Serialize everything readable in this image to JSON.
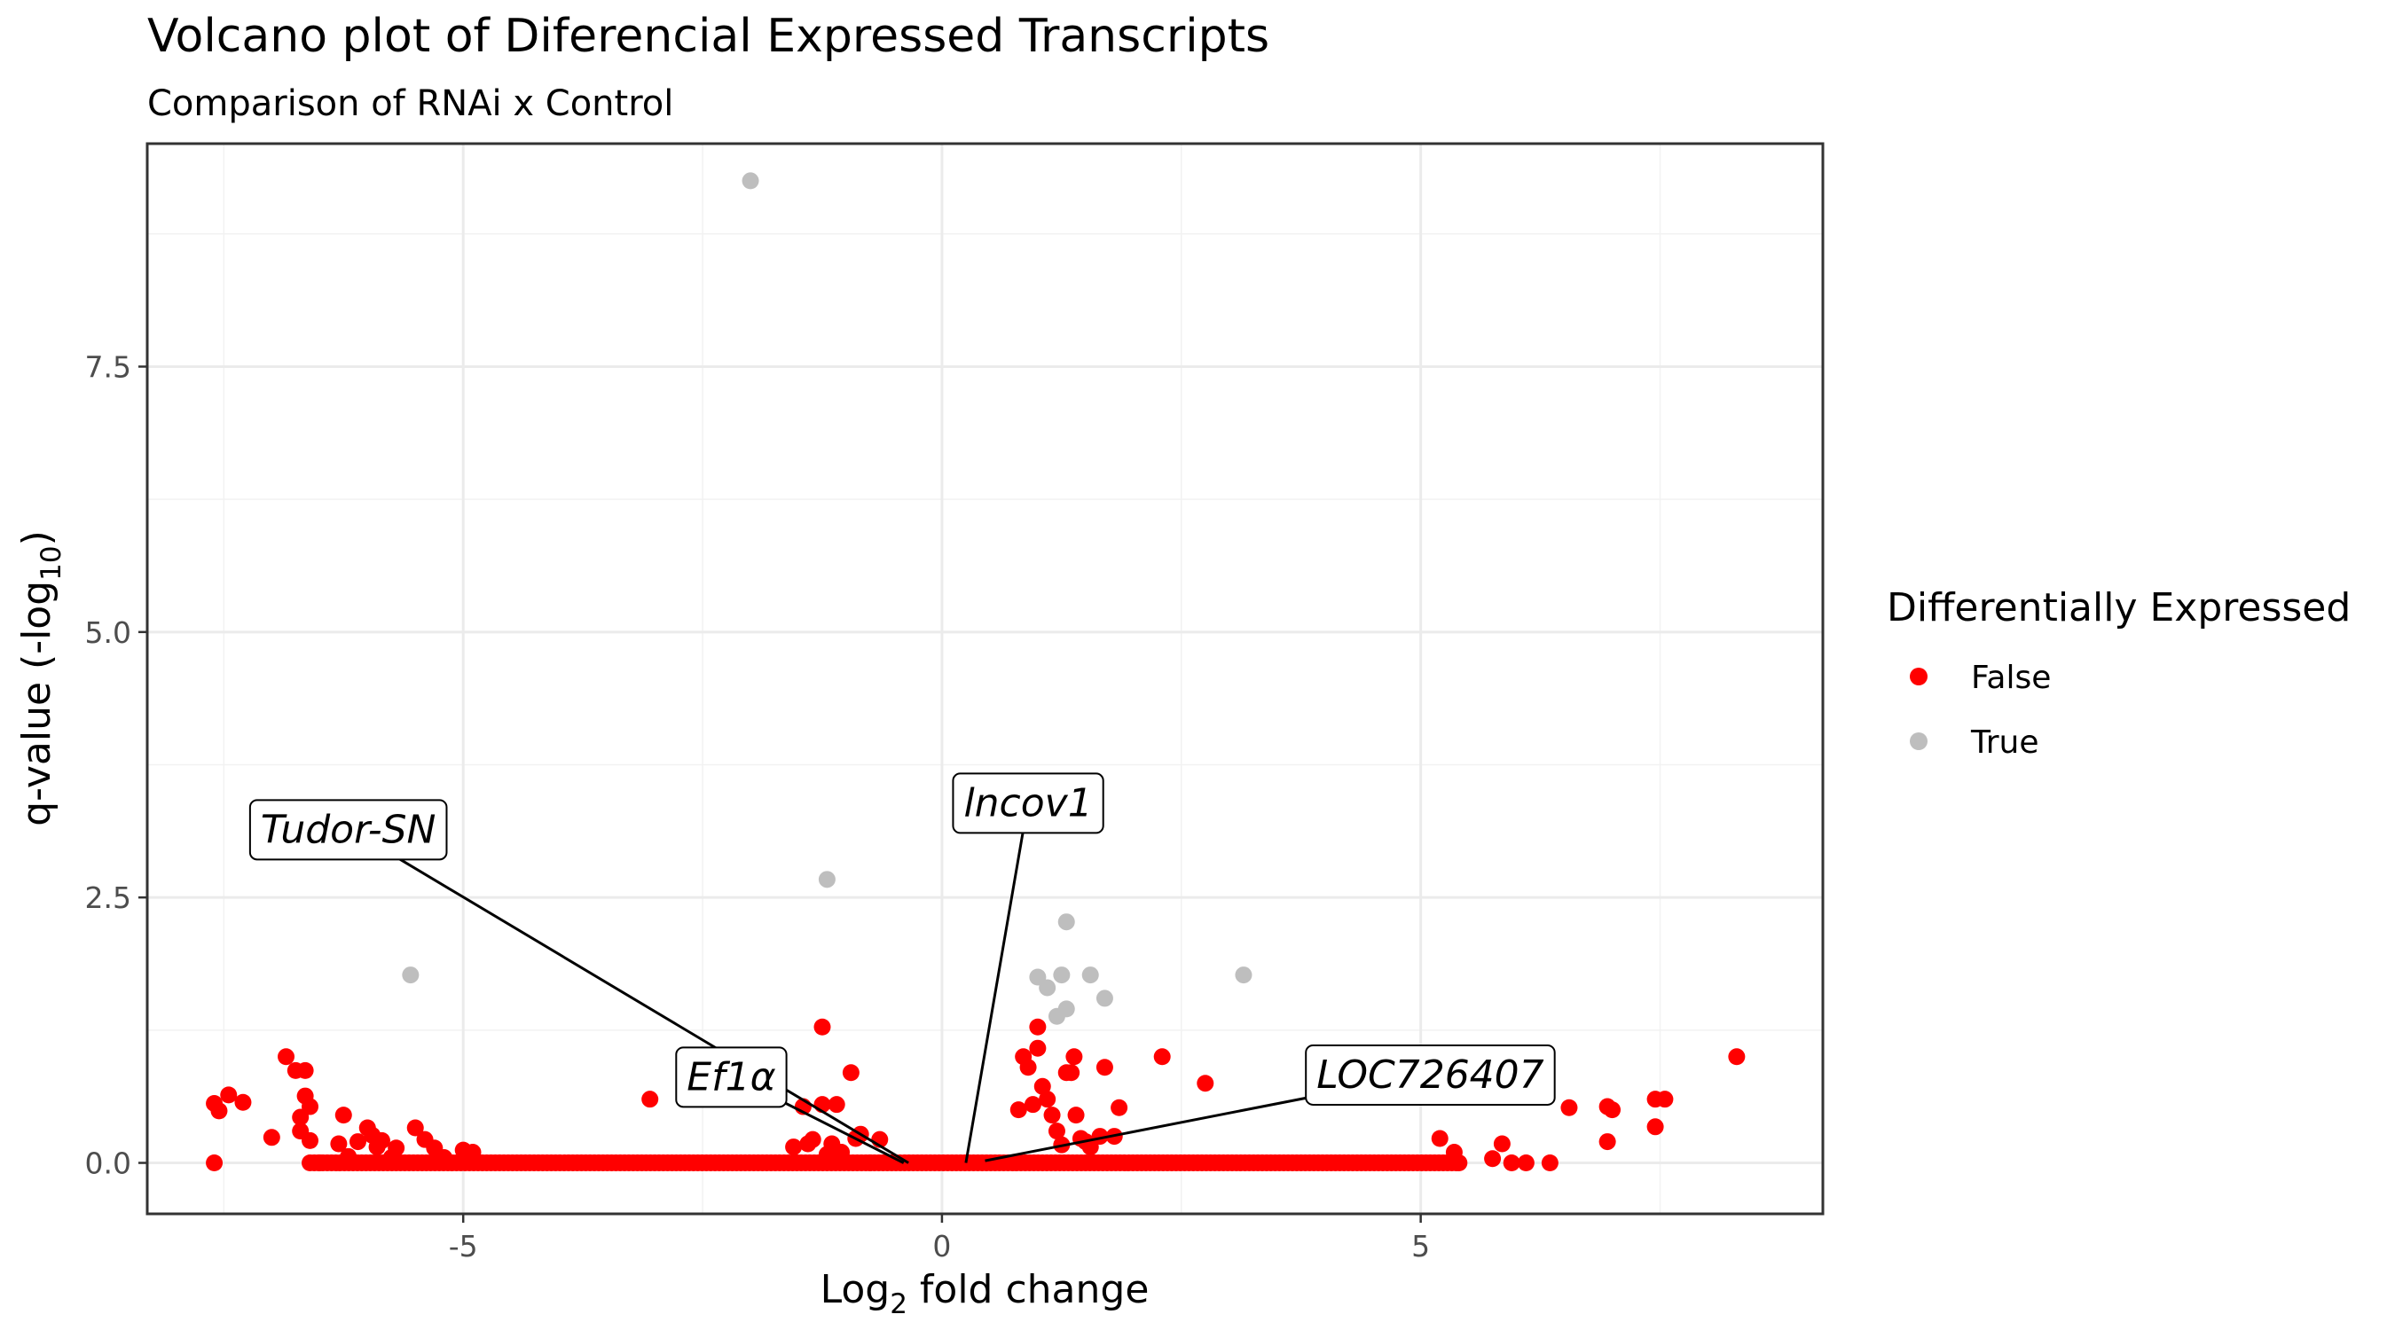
{
  "chart_data": {
    "type": "scatter",
    "title": "Volcano plot of Diferencial Expressed Transcripts",
    "subtitle": "Comparison of RNAi x Control",
    "xlabel": {
      "main": "Log",
      "sub": "2",
      "rest": " fold change"
    },
    "ylabel": {
      "main": "q-value (-log",
      "sub": "10",
      "rest": ")"
    },
    "xlim": [
      -8.3,
      9.2
    ],
    "ylim": [
      -0.48,
      9.6
    ],
    "x_ticks": [
      {
        "value": -5,
        "label": "-5"
      },
      {
        "value": 0,
        "label": "0"
      },
      {
        "value": 5,
        "label": "5"
      }
    ],
    "y_ticks": [
      {
        "value": 0,
        "label": "0.0"
      },
      {
        "value": 2.5,
        "label": "2.5"
      },
      {
        "value": 5,
        "label": "5.0"
      },
      {
        "value": 7.5,
        "label": "7.5"
      }
    ],
    "x_minor_gridlines": [
      -7.5,
      -2.5,
      2.5,
      7.5
    ],
    "y_minor_gridlines": [
      1.25,
      3.75,
      6.25,
      8.75
    ],
    "grid": true,
    "legend": {
      "title": "Differentially Expressed",
      "position": "right",
      "entries": [
        {
          "label": "False",
          "color": "#ff0000"
        },
        {
          "label": "True",
          "color": "#bebebe"
        }
      ]
    },
    "series": [
      {
        "name": "False",
        "color": "#ff0000",
        "points": [
          [
            -7.6,
            0.56
          ],
          [
            -7.55,
            0.49
          ],
          [
            -7.45,
            0.64
          ],
          [
            -7.6,
            0.0
          ],
          [
            -7.3,
            0.57
          ],
          [
            -7.0,
            0.24
          ],
          [
            -6.85,
            1.0
          ],
          [
            -6.75,
            0.87
          ],
          [
            -6.65,
            0.87
          ],
          [
            -6.7,
            0.43
          ],
          [
            -6.65,
            0.63
          ],
          [
            -6.6,
            0.53
          ],
          [
            -6.7,
            0.3
          ],
          [
            -6.6,
            0.21
          ],
          [
            -6.5,
            0.0
          ],
          [
            -6.3,
            0.18
          ],
          [
            -6.25,
            0.45
          ],
          [
            -6.2,
            0.06
          ],
          [
            -6.1,
            0.2
          ],
          [
            -6.0,
            0.33
          ],
          [
            -5.95,
            0.26
          ],
          [
            -5.9,
            0.15
          ],
          [
            -5.85,
            0.21
          ],
          [
            -5.75,
            0.05
          ],
          [
            -5.7,
            0.14
          ],
          [
            -5.5,
            0.33
          ],
          [
            -5.4,
            0.22
          ],
          [
            -5.3,
            0.14
          ],
          [
            -5.2,
            0.05
          ],
          [
            -5.0,
            0.12
          ],
          [
            -4.9,
            0.1
          ],
          [
            -3.05,
            0.6
          ],
          [
            -1.55,
            0.15
          ],
          [
            -1.45,
            0.53
          ],
          [
            -1.4,
            0.18
          ],
          [
            -1.35,
            0.22
          ],
          [
            -1.25,
            0.55
          ],
          [
            -1.25,
            1.28
          ],
          [
            -1.2,
            0.08
          ],
          [
            -1.15,
            0.18
          ],
          [
            -1.1,
            0.55
          ],
          [
            -1.05,
            0.1
          ],
          [
            -0.95,
            0.85
          ],
          [
            -0.9,
            0.23
          ],
          [
            -0.85,
            0.27
          ],
          [
            -0.75,
            0.0
          ],
          [
            -0.65,
            0.22
          ],
          [
            0.8,
            0.5
          ],
          [
            0.85,
            1.0
          ],
          [
            0.9,
            0.9
          ],
          [
            0.95,
            0.55
          ],
          [
            1.0,
            1.08
          ],
          [
            1.0,
            1.28
          ],
          [
            1.05,
            0.72
          ],
          [
            1.1,
            0.6
          ],
          [
            1.15,
            0.45
          ],
          [
            1.2,
            0.3
          ],
          [
            1.25,
            0.17
          ],
          [
            1.3,
            0.85
          ],
          [
            1.35,
            0.85
          ],
          [
            1.38,
            1.0
          ],
          [
            1.4,
            0.45
          ],
          [
            1.45,
            0.23
          ],
          [
            1.5,
            0.2
          ],
          [
            1.55,
            0.15
          ],
          [
            1.65,
            0.25
          ],
          [
            1.7,
            0.9
          ],
          [
            1.8,
            0.25
          ],
          [
            1.85,
            0.52
          ],
          [
            2.3,
            1.0
          ],
          [
            2.75,
            0.75
          ],
          [
            5.2,
            0.23
          ],
          [
            5.35,
            0.1
          ],
          [
            5.4,
            0.0
          ],
          [
            5.75,
            0.04
          ],
          [
            5.85,
            0.18
          ],
          [
            5.95,
            0.0
          ],
          [
            6.1,
            0.0
          ],
          [
            6.35,
            0.0
          ],
          [
            6.55,
            0.52
          ],
          [
            6.95,
            0.2
          ],
          [
            6.95,
            0.53
          ],
          [
            7.0,
            0.5
          ],
          [
            7.45,
            0.6
          ],
          [
            7.45,
            0.34
          ],
          [
            7.55,
            0.6
          ],
          [
            8.3,
            1.0
          ]
        ],
        "baseline": {
          "y": 0.0,
          "x_from": -6.6,
          "x_to": 5.4,
          "step": 0.045
        }
      },
      {
        "name": "True",
        "color": "#bebebe",
        "points": [
          [
            -2.0,
            9.25
          ],
          [
            -5.55,
            1.77
          ],
          [
            -1.2,
            2.67
          ],
          [
            1.3,
            2.27
          ],
          [
            1.0,
            1.75
          ],
          [
            1.25,
            1.77
          ],
          [
            1.55,
            1.77
          ],
          [
            1.1,
            1.65
          ],
          [
            1.3,
            1.45
          ],
          [
            1.2,
            1.38
          ],
          [
            1.7,
            1.55
          ],
          [
            3.15,
            1.77
          ]
        ]
      }
    ],
    "annotations": [
      {
        "label": "Tudor-SN",
        "label_x": -6.2,
        "label_y": 3.15,
        "point_x": -0.35,
        "point_y": 0.0
      },
      {
        "label": "lncov1",
        "label_x": 0.9,
        "label_y": 3.4,
        "point_x": 0.25,
        "point_y": 0.0
      },
      {
        "label": "Ef1α",
        "label_x": -2.2,
        "label_y": 0.82,
        "point_x": -0.4,
        "point_y": 0.0
      },
      {
        "label": "LOC726407",
        "label_x": 5.1,
        "label_y": 0.84,
        "point_x": 0.45,
        "point_y": 0.02
      }
    ]
  }
}
